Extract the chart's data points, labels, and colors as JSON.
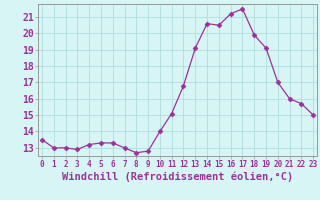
{
  "hours": [
    0,
    1,
    2,
    3,
    4,
    5,
    6,
    7,
    8,
    9,
    10,
    11,
    12,
    13,
    14,
    15,
    16,
    17,
    18,
    19,
    20,
    21,
    22,
    23
  ],
  "values": [
    13.5,
    13.0,
    13.0,
    12.9,
    13.2,
    13.3,
    13.3,
    13.0,
    12.7,
    12.8,
    14.0,
    15.1,
    16.8,
    19.1,
    20.6,
    20.5,
    21.2,
    21.5,
    19.9,
    19.1,
    17.0,
    16.0,
    15.7,
    15.0
  ],
  "line_color": "#993399",
  "marker": "D",
  "marker_size": 2.5,
  "bg_color": "#d8f5f5",
  "grid_color": "#b0dede",
  "xlabel": "Windchill (Refroidissement éolien,°C)",
  "ylim": [
    12.5,
    21.8
  ],
  "yticks": [
    13,
    14,
    15,
    16,
    17,
    18,
    19,
    20,
    21
  ],
  "tick_color": "#993399",
  "tick_fontsize": 7,
  "label_fontsize": 7.5,
  "spine_color": "#999999"
}
